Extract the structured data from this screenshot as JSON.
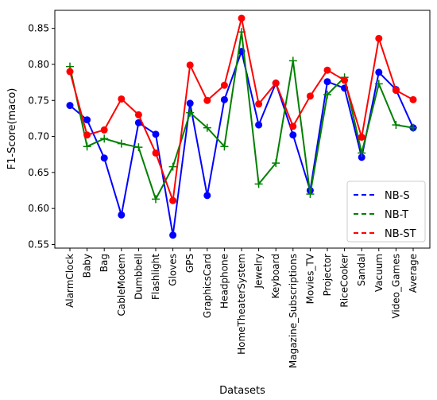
{
  "chart_data": {
    "type": "line",
    "title": "",
    "xlabel": "Datasets",
    "ylabel": "F1-Score(maco)",
    "ylim": [
      0.545,
      0.875
    ],
    "yticks": [
      "0.55",
      "0.60",
      "0.65",
      "0.70",
      "0.75",
      "0.80",
      "0.85"
    ],
    "grid": false,
    "legend_position": "bottom-right",
    "categories": [
      "AlarmClock",
      "Baby",
      "Bag",
      "CableModem",
      "Dumbbell",
      "Flashlight",
      "Gloves",
      "GPS",
      "GraphicsCard",
      "Headphone",
      "HomeTheaterSystem",
      "Jewelry",
      "Keyboard",
      "Magazine_Subscriptions",
      "Movies_TV",
      "Projector",
      "RiceCooker",
      "Sandal",
      "Vacuum",
      "Video_Games",
      "Average"
    ],
    "series": [
      {
        "name": "NB-S",
        "color": "#0000ff",
        "marker": "circle",
        "values": [
          0.743,
          0.723,
          0.67,
          0.591,
          0.719,
          0.703,
          0.563,
          0.746,
          0.618,
          0.751,
          0.818,
          0.716,
          0.774,
          0.702,
          0.625,
          0.776,
          0.767,
          0.671,
          0.789,
          0.765,
          0.712
        ]
      },
      {
        "name": "NB-T",
        "color": "#008000",
        "marker": "plus",
        "values": [
          0.797,
          0.686,
          0.697,
          0.69,
          0.685,
          0.613,
          0.658,
          0.733,
          0.712,
          0.686,
          0.845,
          0.634,
          0.663,
          0.805,
          0.62,
          0.758,
          0.782,
          0.677,
          0.773,
          0.716,
          0.712
        ]
      },
      {
        "name": "NB-ST",
        "color": "#ff0000",
        "marker": "circle",
        "values": [
          0.79,
          0.702,
          0.709,
          0.752,
          0.73,
          0.677,
          0.611,
          0.799,
          0.75,
          0.771,
          0.864,
          0.745,
          0.774,
          0.714,
          0.756,
          0.792,
          0.778,
          0.699,
          0.836,
          0.764,
          0.751
        ]
      }
    ]
  }
}
